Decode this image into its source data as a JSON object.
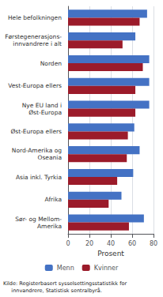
{
  "chart_data": {
    "type": "bar",
    "orientation": "horizontal",
    "categories": [
      "Hele befolkningen",
      "Førstegenerasjons-\ninnvandrere i alt",
      "Norden",
      "Vest-Europa ellers",
      "Nye EU land i\nØst-Europa",
      "Øst-Europa ellers",
      "Nord-Amerika og\nOseania",
      "Asia inkl. Tyrkia",
      "Afrika",
      "Sør- og Mellom-\nAmerika"
    ],
    "series": [
      {
        "name": "Menn",
        "color": "#4472C4",
        "values": [
          74,
          63,
          76,
          76,
          76,
          62,
          67,
          61,
          50,
          71
        ]
      },
      {
        "name": "Kvinner",
        "color": "#9B1B2A",
        "values": [
          67,
          51,
          70,
          63,
          63,
          56,
          55,
          46,
          38,
          57
        ]
      }
    ],
    "xlabel": "Prosent",
    "xlim": [
      0,
      80
    ],
    "xticks": [
      0,
      20,
      40,
      60,
      80
    ],
    "grid": true,
    "legend": "bottom",
    "annotation": "Kilde: Registerbasert sysselsettingsstatistikk for\n     innvandrere, Statistisk sentralbyrå."
  }
}
